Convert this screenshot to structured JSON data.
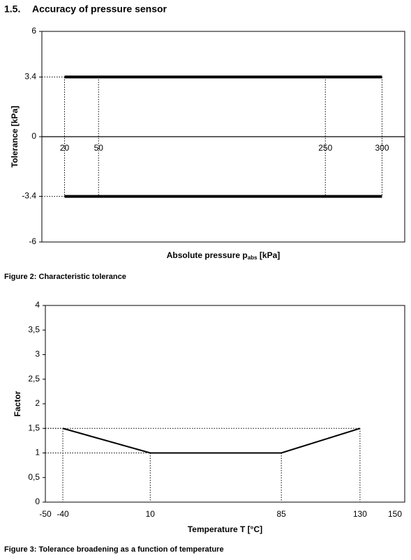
{
  "heading": {
    "number": "1.5.",
    "title": "Accuracy of pressure sensor"
  },
  "chart_data": [
    {
      "type": "line",
      "xlabel": {
        "text": "Absolute pressure p",
        "subscript": "abs",
        "suffix": " [kPa]"
      },
      "ylabel": "Tolerance [kPa]",
      "x": [
        20,
        300
      ],
      "series": [
        {
          "color": "#000000",
          "values": [
            3.4,
            3.4
          ]
        },
        {
          "color": "#000000",
          "values": [
            -3.4,
            -3.4
          ]
        }
      ],
      "xlim": [
        0,
        320
      ],
      "xticks": [
        20,
        50,
        250,
        300
      ],
      "ylim": [
        -6,
        6
      ],
      "yticks": [
        6,
        3.4,
        0,
        -3.4,
        -6
      ],
      "caption": "Figure 2:  Characteristic tolerance"
    },
    {
      "type": "line",
      "xlabel": {
        "text": "Temperature T [°C]"
      },
      "ylabel": "Factor",
      "x": [
        -40,
        10,
        85,
        130
      ],
      "series": [
        {
          "color": "#000000",
          "values": [
            1.5,
            1,
            1,
            1.5
          ]
        }
      ],
      "xlim": [
        -50,
        150
      ],
      "xticks": [
        -50,
        -40,
        10,
        85,
        130,
        150
      ],
      "ylim": [
        0,
        4
      ],
      "yticks": [
        0,
        {
          "value": 0.5,
          "label": "0,5"
        },
        1,
        {
          "value": 1.5,
          "label": "1,5"
        },
        2,
        {
          "value": 2.5,
          "label": "2,5"
        },
        3,
        {
          "value": 3.5,
          "label": "3,5"
        },
        4
      ],
      "caption": "Figure 3: Tolerance broadening as a function of temperature"
    }
  ]
}
